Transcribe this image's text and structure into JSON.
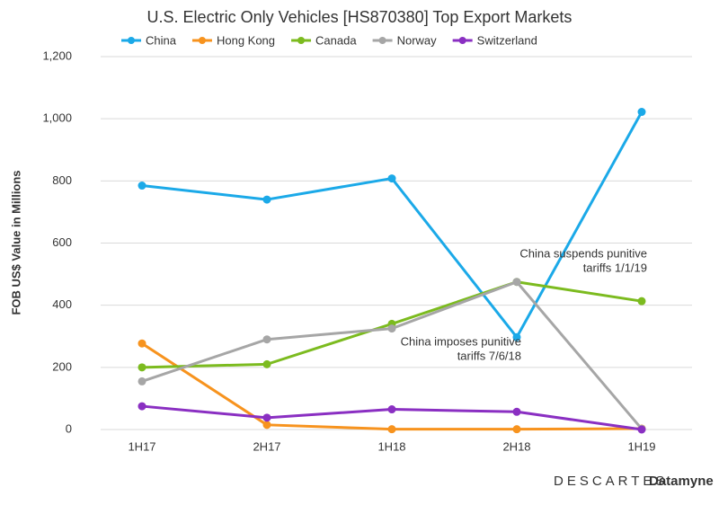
{
  "chart_data": {
    "type": "line",
    "title": "U.S. Electric Only Vehicles [HS870380] Top Export Markets",
    "y_label": "FOB US$ Value in Millions",
    "categories": [
      "1H17",
      "2H17",
      "1H18",
      "2H18",
      "1H19"
    ],
    "series": [
      {
        "name": "China",
        "color": "#1ba9e8",
        "values": [
          785,
          740,
          808,
          297,
          1022
        ]
      },
      {
        "name": "Hong Kong",
        "color": "#f7931e",
        "values": [
          277,
          15,
          1,
          1,
          3
        ]
      },
      {
        "name": "Canada",
        "color": "#7cbb1f",
        "values": [
          200,
          210,
          340,
          475,
          413
        ]
      },
      {
        "name": "Norway",
        "color": "#a6a6a6",
        "values": [
          155,
          290,
          325,
          475,
          2
        ]
      },
      {
        "name": "Switzerland",
        "color": "#8a2fc2",
        "values": [
          75,
          38,
          65,
          57,
          0
        ]
      }
    ],
    "ylim": [
      0,
      1200
    ],
    "yticks": [
      0,
      200,
      400,
      600,
      800,
      {
        "value": 1000,
        "label": "1,000"
      },
      {
        "value": 1200,
        "label": "1,200"
      }
    ],
    "grid": true,
    "annotations": [
      {
        "lines": [
          "China suspends punitive",
          "tariffs 1/1/19"
        ]
      },
      {
        "lines": [
          "China imposes punitive",
          "tariffs 7/6/18"
        ]
      }
    ],
    "logo": {
      "brand": "DESCARTES",
      "product": "Datamyne"
    }
  }
}
